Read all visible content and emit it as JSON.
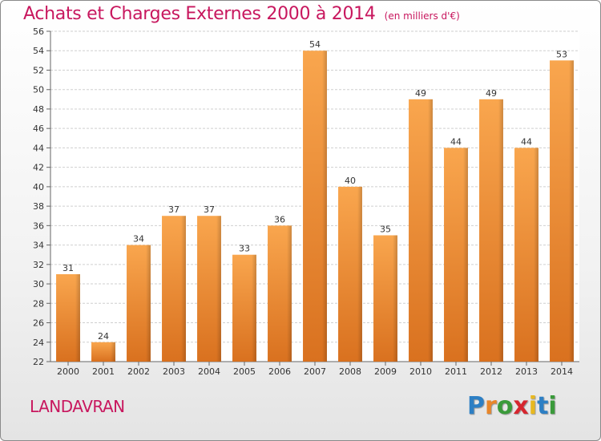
{
  "title": "Achats et Charges Externes 2000 à 2014",
  "unit_note": "(en milliers d'€)",
  "location": "LANDAVRAN",
  "brand": {
    "letters": [
      "P",
      "r",
      "o",
      "x",
      "i",
      "t",
      "i"
    ],
    "colors": [
      "#2d7fc4",
      "#e8862a",
      "#3a9a3a",
      "#d6262f",
      "#e8b81f",
      "#2d7fc4",
      "#3a9a3a"
    ]
  },
  "colors": {
    "bar_top": "#f9a64e",
    "bar_bottom": "#d9711f",
    "title": "#c8175e",
    "grid": "#cfcfcf"
  },
  "chart_data": {
    "type": "bar",
    "categories": [
      "2000",
      "2001",
      "2002",
      "2003",
      "2004",
      "2005",
      "2006",
      "2007",
      "2008",
      "2009",
      "2010",
      "2011",
      "2012",
      "2013",
      "2014"
    ],
    "values": [
      31,
      24,
      34,
      37,
      37,
      33,
      36,
      54,
      40,
      35,
      49,
      44,
      49,
      44,
      53
    ],
    "ylim": [
      22,
      56
    ],
    "yticks": [
      22,
      24,
      26,
      28,
      30,
      32,
      34,
      36,
      38,
      40,
      42,
      44,
      46,
      48,
      50,
      52,
      54,
      56
    ],
    "grid": true,
    "data_labels": true
  }
}
